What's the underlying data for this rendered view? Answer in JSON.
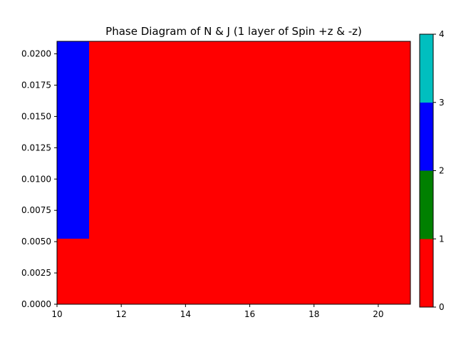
{
  "chart_data": {
    "type": "heatmap",
    "title": "Phase Diagram of N & J (1 layer of Spin +z & -z)",
    "xlabel": "",
    "ylabel": "",
    "xlim": [
      10,
      21
    ],
    "ylim": [
      0,
      0.021
    ],
    "x_ticks": [
      10,
      12,
      14,
      16,
      18,
      20
    ],
    "x_tick_labels": [
      "10",
      "12",
      "14",
      "16",
      "18",
      "20"
    ],
    "y_ticks": [
      0,
      0.0025,
      0.005,
      0.0075,
      0.01,
      0.0125,
      0.015,
      0.0175,
      0.02
    ],
    "y_tick_labels": [
      "0.0000",
      "0.0025",
      "0.0050",
      "0.0075",
      "0.0100",
      "0.0125",
      "0.0150",
      "0.0175",
      "0.0200"
    ],
    "regions": [
      {
        "x": [
          10,
          21
        ],
        "y": [
          0,
          0.021
        ],
        "value": 0
      },
      {
        "x": [
          10,
          11
        ],
        "y": [
          0.00525,
          0.021
        ],
        "value": 2
      }
    ],
    "grid": false,
    "colorbar": {
      "range": [
        0,
        4
      ],
      "bands": [
        {
          "from": 0,
          "to": 1,
          "color": "#ff0000"
        },
        {
          "from": 1,
          "to": 2,
          "color": "#008000"
        },
        {
          "from": 2,
          "to": 3,
          "color": "#0000ff"
        },
        {
          "from": 3,
          "to": 4,
          "color": "#00bfbf"
        }
      ],
      "ticks": [
        0,
        1,
        2,
        3,
        4
      ],
      "tick_labels": [
        "0",
        "1",
        "2",
        "3",
        "4"
      ]
    }
  }
}
